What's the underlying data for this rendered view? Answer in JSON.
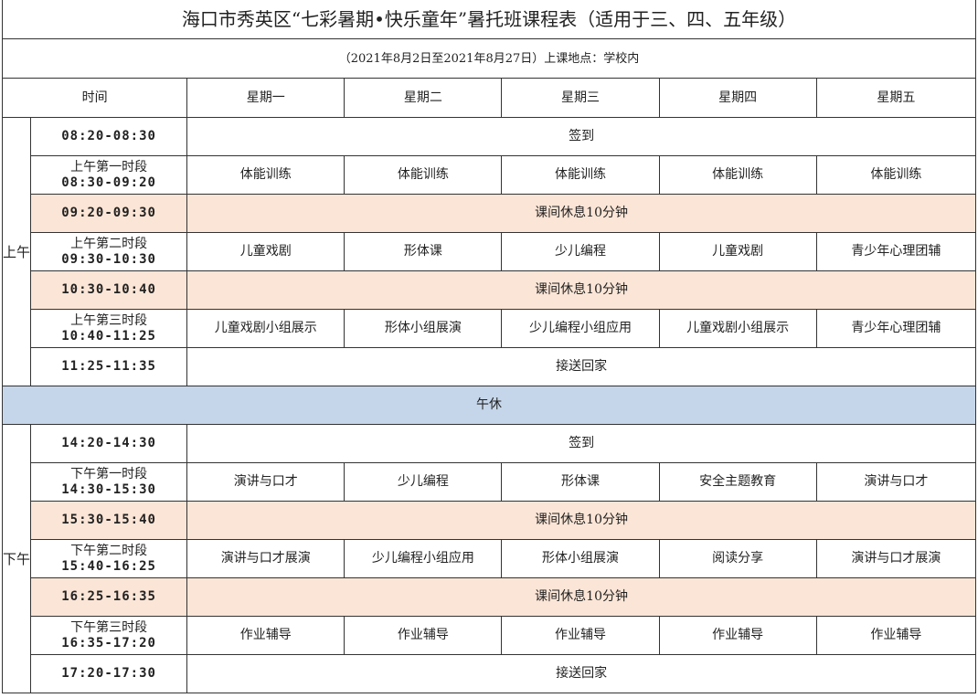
{
  "title": "海口市秀英区“七彩暑期•快乐童年”暑托班课程表（适用于三、四、五年级）",
  "subtitle": "（2021年8月2日至2021年8月27日）上课地点：学校内",
  "header": {
    "time": "时间",
    "days": [
      "星期一",
      "星期二",
      "星期三",
      "星期四",
      "星期五"
    ]
  },
  "colors": {
    "break": "#fbe5d6",
    "noon": "#c6d6ea"
  },
  "morning": {
    "label": "上午",
    "rows": [
      {
        "time": "08:20-08:30",
        "span": "签到"
      },
      {
        "period": "上午第一时段",
        "time": "08:30-09:20",
        "cells": [
          "体能训练",
          "体能训练",
          "体能训练",
          "体能训练",
          "体能训练"
        ]
      },
      {
        "time": "09:20-09:30",
        "span": "课间休息10分钟",
        "break": true
      },
      {
        "period": "上午第二时段",
        "time": "09:30-10:30",
        "cells": [
          "儿童戏剧",
          "形体课",
          "少儿编程",
          "儿童戏剧",
          "青少年心理团辅"
        ]
      },
      {
        "time": "10:30-10:40",
        "span": "课间休息10分钟",
        "break": true
      },
      {
        "period": "上午第三时段",
        "time": "10:40-11:25",
        "cells": [
          "儿童戏剧小组展示",
          "形体小组展演",
          "少儿编程小组应用",
          "儿童戏剧小组展示",
          "青少年心理团辅"
        ]
      },
      {
        "time": "11:25-11:35",
        "span": "接送回家"
      }
    ]
  },
  "noon": "午休",
  "afternoon": {
    "label": "下午",
    "rows": [
      {
        "time": "14:20-14:30",
        "span": "签到"
      },
      {
        "period": "下午第一时段",
        "time": "14:30-15:30",
        "cells": [
          "演讲与口才",
          "少儿编程",
          "形体课",
          "安全主题教育",
          "演讲与口才"
        ]
      },
      {
        "time": "15:30-15:40",
        "span": "课间休息10分钟",
        "break": true
      },
      {
        "period": "下午第二时段",
        "time": "15:40-16:25",
        "cells": [
          "演讲与口才展演",
          "少儿编程小组应用",
          "形体小组展演",
          "阅读分享",
          "演讲与口才展演"
        ]
      },
      {
        "time": "16:25-16:35",
        "span": "课间休息10分钟",
        "break": true
      },
      {
        "period": "下午第三时段",
        "time": "16:35-17:20",
        "cells": [
          "作业辅导",
          "作业辅导",
          "作业辅导",
          "作业辅导",
          "作业辅导"
        ]
      },
      {
        "time": "17:20-17:30",
        "span": "接送回家"
      }
    ]
  }
}
